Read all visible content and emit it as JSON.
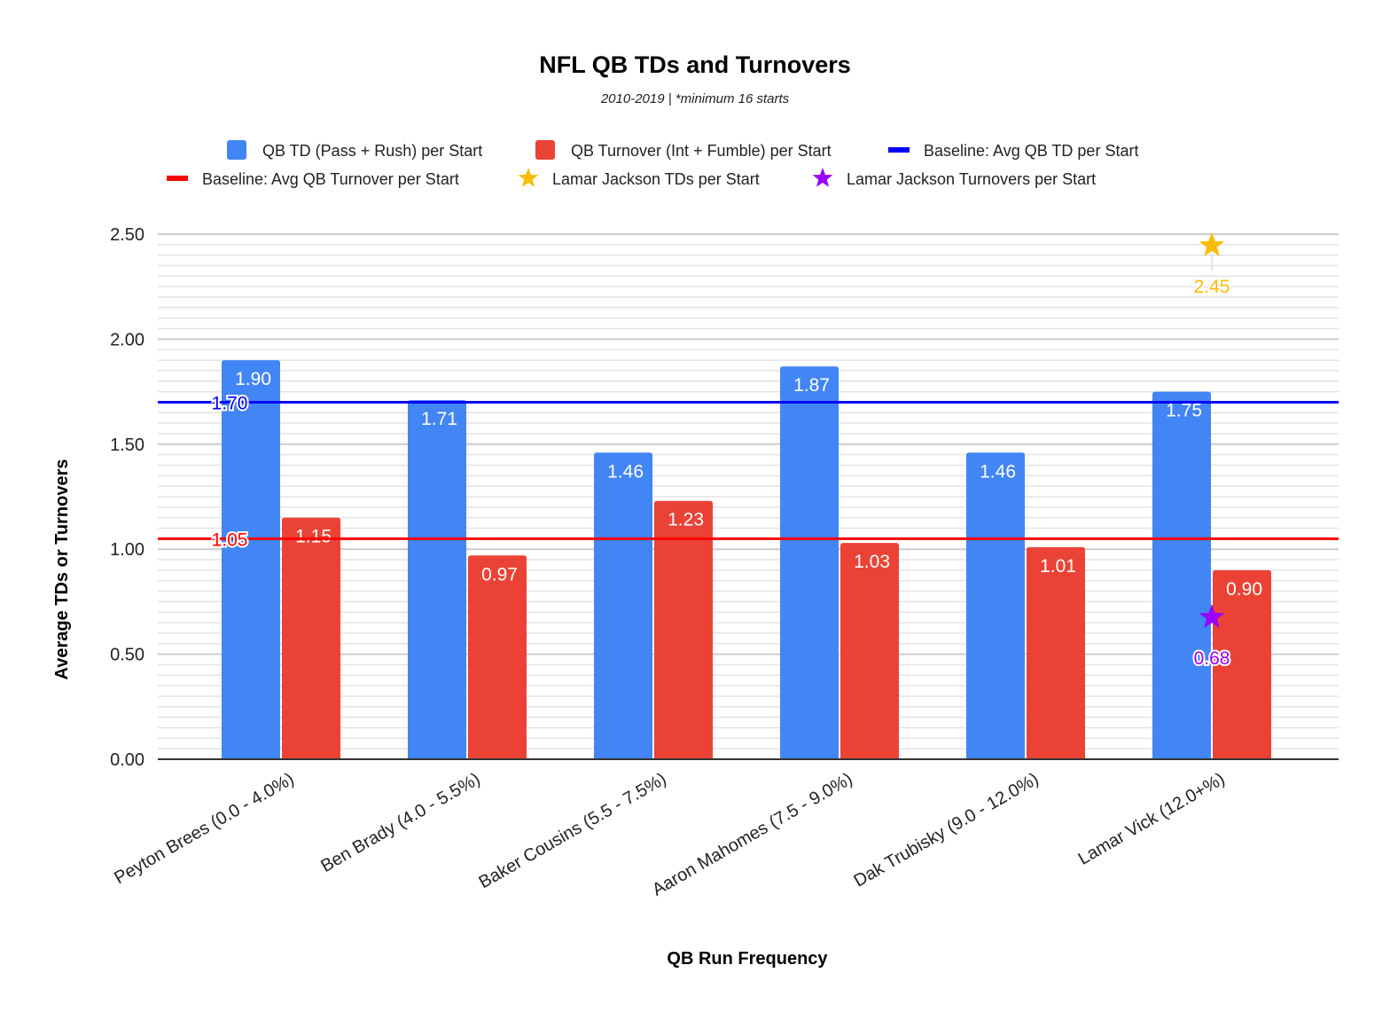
{
  "chart_data": {
    "type": "bar",
    "title": "NFL QB TDs and Turnovers",
    "subtitle": "2010-2019 | *minimum 16 starts",
    "xlabel": "QB Run Frequency",
    "ylabel": "Average TDs or Turnovers",
    "ylim": [
      0,
      2.5
    ],
    "yticks": [
      "0.00",
      "0.50",
      "1.00",
      "1.50",
      "2.00",
      "2.50"
    ],
    "ytick_values": [
      0,
      0.5,
      1.0,
      1.5,
      2.0,
      2.5
    ],
    "minor_grid_step": 0.05,
    "grid": true,
    "legend_position": "top",
    "categories": [
      "Peyton Brees (0.0 - 4.0%)",
      "Ben Brady (4.0 - 5.5%)",
      "Baker Cousins (5.5 - 7.5%)",
      "Aaron Mahomes (7.5 - 9.0%)",
      "Dak Trubisky (9.0 - 12.0%)",
      "Lamar Vick (12.0+%)"
    ],
    "series": [
      {
        "name": "QB TD (Pass + Rush) per Start",
        "type": "bar",
        "color": "#4285f4",
        "values": [
          1.9,
          1.71,
          1.46,
          1.87,
          1.46,
          1.75
        ],
        "labels": [
          "1.90",
          "1.71",
          "1.46",
          "1.87",
          "1.46",
          "1.75"
        ]
      },
      {
        "name": "QB Turnover (Int + Fumble) per Start",
        "type": "bar",
        "color": "#ea4335",
        "values": [
          1.15,
          0.97,
          1.23,
          1.03,
          1.01,
          0.9
        ],
        "labels": [
          "1.15",
          "0.97",
          "1.23",
          "1.03",
          "1.01",
          "0.90"
        ]
      }
    ],
    "baselines": [
      {
        "name": "Baseline: Avg QB TD per Start",
        "value": 1.7,
        "label": "1.70",
        "color": "#0000ff"
      },
      {
        "name": "Baseline: Avg QB Turnover per Start",
        "value": 1.05,
        "label": "1.05",
        "color": "#ff0000"
      }
    ],
    "markers": [
      {
        "name": "Lamar Jackson TDs per Start",
        "category_index": 5,
        "value": 2.45,
        "label": "2.45",
        "color": "#fbbc04"
      },
      {
        "name": "Lamar Jackson Turnovers per Start",
        "category_index": 5,
        "value": 0.68,
        "label": "0.68",
        "color": "#9900ff"
      }
    ]
  },
  "legend": {
    "items": [
      {
        "label": "QB TD (Pass + Rush) per Start",
        "icon": "square",
        "color": "#4285f4"
      },
      {
        "label": "QB Turnover (Int + Fumble) per Start",
        "icon": "square",
        "color": "#ea4335"
      },
      {
        "label": "Baseline: Avg QB TD per Start",
        "icon": "line",
        "color": "#0000ff"
      },
      {
        "label": "Baseline: Avg QB Turnover per Start",
        "icon": "line",
        "color": "#ff0000"
      },
      {
        "label": "Lamar Jackson TDs per Start",
        "icon": "star",
        "color": "#fbbc04"
      },
      {
        "label": "Lamar Jackson Turnovers per Start",
        "icon": "star",
        "color": "#9900ff"
      }
    ]
  }
}
